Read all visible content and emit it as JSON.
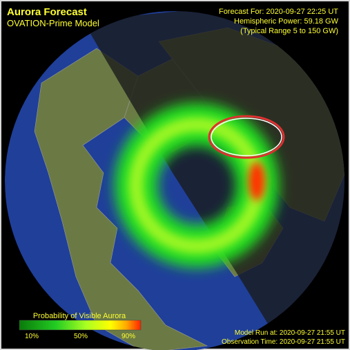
{
  "header": {
    "title": "Aurora Forecast",
    "subtitle": "OVATION-Prime Model"
  },
  "info": {
    "forecast_for": "Forecast For: 2020-09-27 22:25 UT",
    "hemispheric_power": "Hemispheric Power: 59.18 GW",
    "typical_range": "(Typical Range 5 to 150 GW)"
  },
  "legend": {
    "title": "Probability of Visible Aurora",
    "labels": [
      "10%",
      "50%",
      "90%"
    ]
  },
  "footer": {
    "model_run": "Model Run at: 2020-09-27 21:55 UT",
    "observation_time": "Observation Time: 2020-09-27 21:55 UT"
  }
}
